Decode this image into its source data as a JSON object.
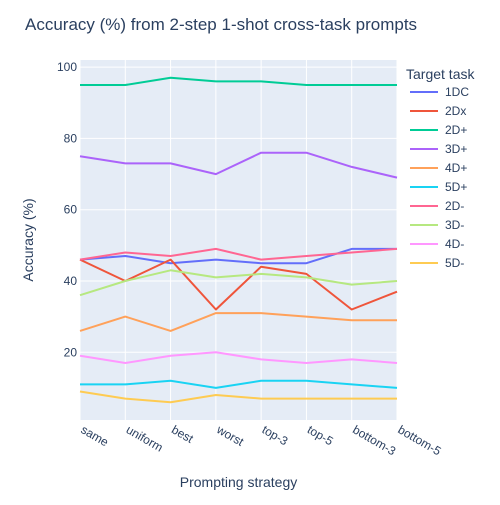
{
  "chart_data": {
    "type": "line",
    "title": "Accuracy (%) from 2-step 1-shot cross-task prompts",
    "xlabel": "Prompting strategy",
    "ylabel": "Accuracy (%)",
    "legend_title": "Target task",
    "legend_position": "right",
    "grid": true,
    "categories": [
      "same",
      "uniform",
      "best",
      "worst",
      "top-3",
      "top-5",
      "bottom-3",
      "bottom-5"
    ],
    "ylim": [
      1,
      102
    ],
    "yticks": [
      20,
      40,
      60,
      80,
      100
    ],
    "series": [
      {
        "name": "1DC",
        "color": "#636efa",
        "values": [
          46,
          47,
          45,
          46,
          45,
          45,
          49,
          49
        ]
      },
      {
        "name": "2Dx",
        "color": "#EF553B",
        "values": [
          46,
          40,
          46,
          32,
          44,
          42,
          32,
          37
        ]
      },
      {
        "name": "2D+",
        "color": "#00cc96",
        "values": [
          95,
          95,
          97,
          96,
          96,
          95,
          95,
          95
        ]
      },
      {
        "name": "3D+",
        "color": "#ab63fa",
        "values": [
          75,
          73,
          73,
          70,
          76,
          76,
          72,
          69
        ]
      },
      {
        "name": "4D+",
        "color": "#FFA15A",
        "values": [
          26,
          30,
          26,
          31,
          31,
          30,
          29,
          29
        ]
      },
      {
        "name": "5D+",
        "color": "#19d3f3",
        "values": [
          11,
          11,
          12,
          10,
          12,
          12,
          11,
          10
        ]
      },
      {
        "name": "2D-",
        "color": "#FF6692",
        "values": [
          46,
          48,
          47,
          49,
          46,
          47,
          48,
          49
        ]
      },
      {
        "name": "3D-",
        "color": "#B6E880",
        "values": [
          36,
          40,
          43,
          41,
          42,
          41,
          39,
          40
        ]
      },
      {
        "name": "4D-",
        "color": "#FF97FF",
        "values": [
          19,
          17,
          19,
          20,
          18,
          17,
          18,
          17
        ]
      },
      {
        "name": "5D-",
        "color": "#FECB52",
        "values": [
          9,
          7,
          6,
          8,
          7,
          7,
          7,
          7
        ]
      }
    ]
  }
}
